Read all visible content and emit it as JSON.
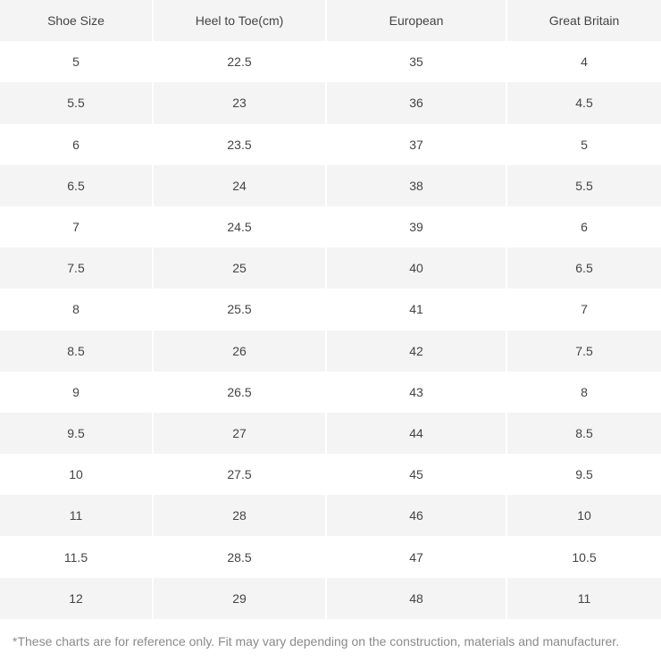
{
  "table": {
    "header": [
      "Shoe Size",
      "Heel to Toe(cm)",
      "European",
      "Great Britain"
    ],
    "rows": [
      [
        "5",
        "22.5",
        "35",
        "4"
      ],
      [
        "5.5",
        "23",
        "36",
        "4.5"
      ],
      [
        "6",
        "23.5",
        "37",
        "5"
      ],
      [
        "6.5",
        "24",
        "38",
        "5.5"
      ],
      [
        "7",
        "24.5",
        "39",
        "6"
      ],
      [
        "7.5",
        "25",
        "40",
        "6.5"
      ],
      [
        "8",
        "25.5",
        "41",
        "7"
      ],
      [
        "8.5",
        "26",
        "42",
        "7.5"
      ],
      [
        "9",
        "26.5",
        "43",
        "8"
      ],
      [
        "9.5",
        "27",
        "44",
        "8.5"
      ],
      [
        "10",
        "27.5",
        "45",
        "9.5"
      ],
      [
        "11",
        "28",
        "46",
        "10"
      ],
      [
        "11.5",
        "28.5",
        "47",
        "10.5"
      ],
      [
        "12",
        "29",
        "48",
        "11"
      ]
    ]
  },
  "footnote": "*These charts are for reference only. Fit may vary depending on the construction, materials and manufacturer."
}
